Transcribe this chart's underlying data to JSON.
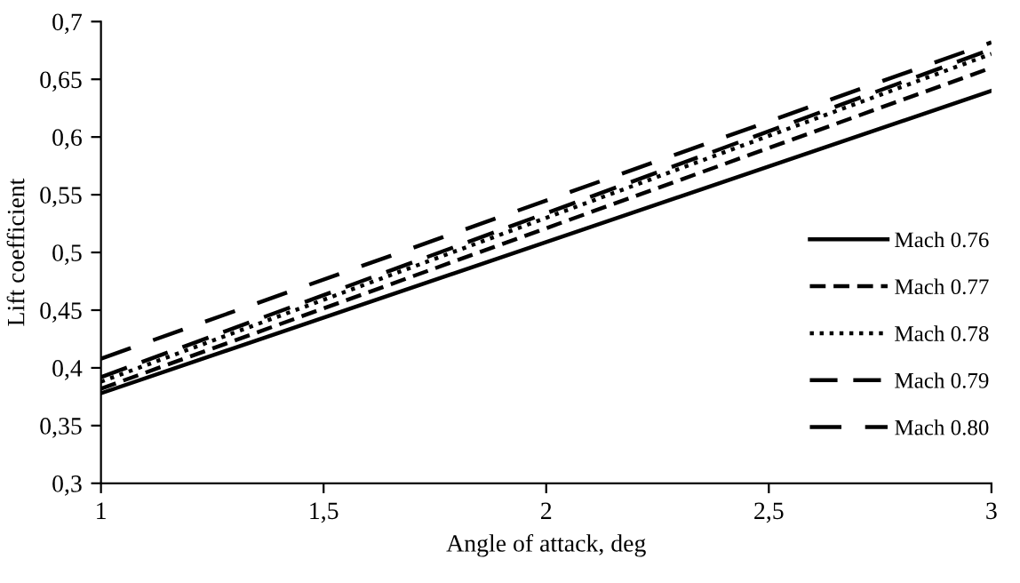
{
  "chart_data": {
    "type": "line",
    "xlabel": "Angle of attack, deg",
    "ylabel": "Lift coefficient",
    "x": [
      1,
      3
    ],
    "series": [
      {
        "name": "Mach 0.76",
        "color": "#000000",
        "line_style": "solid",
        "values": [
          0.378,
          0.64
        ]
      },
      {
        "name": "Mach 0.77",
        "color": "#000000",
        "line_style": "dashed",
        "values": [
          0.382,
          0.66
        ]
      },
      {
        "name": "Mach 0.78",
        "color": "#000000",
        "line_style": "dotted",
        "values": [
          0.388,
          0.672
        ]
      },
      {
        "name": "Mach 0.79",
        "color": "#000000",
        "line_style": "dashed",
        "values": [
          0.392,
          0.676
        ]
      },
      {
        "name": "Mach 0.80",
        "color": "#000000",
        "line_style": "dashed",
        "values": [
          0.408,
          0.682
        ]
      }
    ],
    "xlim": [
      1,
      3
    ],
    "xticks": [
      {
        "value": 1,
        "label": "1"
      },
      {
        "value": 1.5,
        "label": "1,5"
      },
      {
        "value": 2,
        "label": "2"
      },
      {
        "value": 2.5,
        "label": "2,5"
      },
      {
        "value": 3,
        "label": "3"
      }
    ],
    "ylim": [
      0.3,
      0.7
    ],
    "yticks": [
      {
        "value": 0.3,
        "label": "0,3"
      },
      {
        "value": 0.35,
        "label": "0,35"
      },
      {
        "value": 0.4,
        "label": "0,4"
      },
      {
        "value": 0.45,
        "label": "0,45"
      },
      {
        "value": 0.5,
        "label": "0,5"
      },
      {
        "value": 0.55,
        "label": "0,55"
      },
      {
        "value": 0.6,
        "label": "0,6"
      },
      {
        "value": 0.65,
        "label": "0,65"
      },
      {
        "value": 0.7,
        "label": "0,7"
      }
    ],
    "grid": false,
    "legend": "right",
    "marker": "none"
  }
}
